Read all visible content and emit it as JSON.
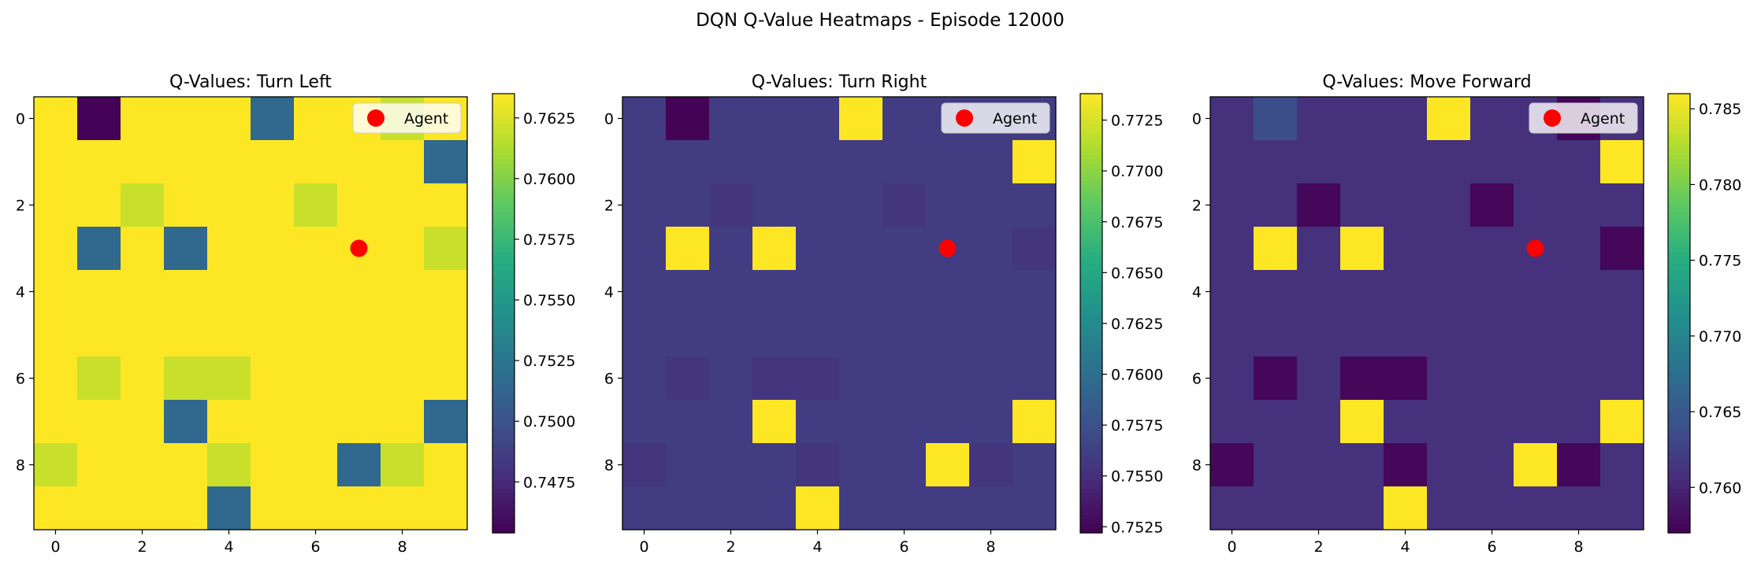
{
  "figure": {
    "title": "DQN Q-Value Heatmaps - Episode 12000"
  },
  "colormap": {
    "name": "viridis",
    "stops": [
      "#440154",
      "#472d7b",
      "#3b528b",
      "#2c728e",
      "#21918c",
      "#28ae80",
      "#5ec962",
      "#addc30",
      "#fde725"
    ]
  },
  "chart_data": [
    {
      "type": "heatmap",
      "title": "Q-Values: Turn Left",
      "x_ticks": [
        "0",
        "2",
        "4",
        "6",
        "8"
      ],
      "y_ticks": [
        "0",
        "2",
        "4",
        "6",
        "8"
      ],
      "grid": false,
      "legend": {
        "position": "top-right",
        "entries": [
          "Agent"
        ]
      },
      "agent": {
        "x": 7,
        "y": 3,
        "label": "Agent",
        "color": "#ff0000"
      },
      "vmin": 0.7454,
      "vmax": 0.7635,
      "colorbar_ticks": [
        "0.7475",
        "0.7500",
        "0.7525",
        "0.7550",
        "0.7575",
        "0.7600",
        "0.7625"
      ],
      "values": [
        [
          0.7635,
          0.7455,
          0.7635,
          0.7635,
          0.7635,
          0.7515,
          0.7635,
          0.7635,
          0.762,
          0.7635
        ],
        [
          0.7635,
          0.7635,
          0.7635,
          0.7635,
          0.7635,
          0.7635,
          0.7635,
          0.7635,
          0.7635,
          0.7515
        ],
        [
          0.7635,
          0.7635,
          0.762,
          0.7635,
          0.7635,
          0.7635,
          0.762,
          0.7635,
          0.7635,
          0.7635
        ],
        [
          0.7635,
          0.7515,
          0.7635,
          0.7515,
          0.7635,
          0.7635,
          0.7635,
          0.7635,
          0.7635,
          0.762
        ],
        [
          0.7635,
          0.7635,
          0.7635,
          0.7635,
          0.7635,
          0.7635,
          0.7635,
          0.7635,
          0.7635,
          0.7635
        ],
        [
          0.7635,
          0.7635,
          0.7635,
          0.7635,
          0.7635,
          0.7635,
          0.7635,
          0.7635,
          0.7635,
          0.7635
        ],
        [
          0.7635,
          0.762,
          0.7635,
          0.762,
          0.762,
          0.7635,
          0.7635,
          0.7635,
          0.7635,
          0.7635
        ],
        [
          0.7635,
          0.7635,
          0.7635,
          0.7515,
          0.7635,
          0.7635,
          0.7635,
          0.7635,
          0.7635,
          0.7515
        ],
        [
          0.762,
          0.7635,
          0.7635,
          0.7635,
          0.762,
          0.7635,
          0.7635,
          0.7515,
          0.762,
          0.7635
        ],
        [
          0.7635,
          0.7635,
          0.7635,
          0.7635,
          0.7515,
          0.7635,
          0.7635,
          0.7635,
          0.7635,
          0.7635
        ]
      ]
    },
    {
      "type": "heatmap",
      "title": "Q-Values: Turn Right",
      "x_ticks": [
        "0",
        "2",
        "4",
        "6",
        "8"
      ],
      "y_ticks": [
        "0",
        "2",
        "4",
        "6",
        "8"
      ],
      "grid": false,
      "legend": {
        "position": "top-right",
        "entries": [
          "Agent"
        ]
      },
      "agent": {
        "x": 7,
        "y": 3,
        "label": "Agent",
        "color": "#ff0000"
      },
      "vmin": 0.7522,
      "vmax": 0.7738,
      "colorbar_ticks": [
        "0.7525",
        "0.7550",
        "0.7575",
        "0.7600",
        "0.7625",
        "0.7650",
        "0.7675",
        "0.7700",
        "0.7725"
      ],
      "values": [
        [
          0.756,
          0.7523,
          0.756,
          0.756,
          0.756,
          0.7738,
          0.756,
          0.756,
          0.756,
          0.756
        ],
        [
          0.756,
          0.756,
          0.756,
          0.756,
          0.756,
          0.756,
          0.756,
          0.756,
          0.756,
          0.7738
        ],
        [
          0.756,
          0.756,
          0.7555,
          0.756,
          0.756,
          0.756,
          0.7555,
          0.756,
          0.756,
          0.756
        ],
        [
          0.756,
          0.7738,
          0.756,
          0.7738,
          0.756,
          0.756,
          0.756,
          0.756,
          0.756,
          0.7555
        ],
        [
          0.756,
          0.756,
          0.756,
          0.756,
          0.756,
          0.756,
          0.756,
          0.756,
          0.756,
          0.756
        ],
        [
          0.756,
          0.756,
          0.756,
          0.756,
          0.756,
          0.756,
          0.756,
          0.756,
          0.756,
          0.756
        ],
        [
          0.756,
          0.7555,
          0.756,
          0.7555,
          0.7555,
          0.756,
          0.756,
          0.756,
          0.756,
          0.756
        ],
        [
          0.756,
          0.756,
          0.756,
          0.7738,
          0.756,
          0.756,
          0.756,
          0.756,
          0.756,
          0.7738
        ],
        [
          0.7555,
          0.756,
          0.756,
          0.756,
          0.7555,
          0.756,
          0.756,
          0.7738,
          0.7555,
          0.756
        ],
        [
          0.756,
          0.756,
          0.756,
          0.756,
          0.7738,
          0.756,
          0.756,
          0.756,
          0.756,
          0.756
        ]
      ]
    },
    {
      "type": "heatmap",
      "title": "Q-Values: Move Forward",
      "x_ticks": [
        "0",
        "2",
        "4",
        "6",
        "8"
      ],
      "y_ticks": [
        "0",
        "2",
        "4",
        "6",
        "8"
      ],
      "grid": false,
      "legend": {
        "position": "top-right",
        "entries": [
          "Agent"
        ]
      },
      "agent": {
        "x": 7,
        "y": 3,
        "label": "Agent",
        "color": "#ff0000"
      },
      "vmin": 0.757,
      "vmax": 0.786,
      "colorbar_ticks": [
        "0.760",
        "0.765",
        "0.770",
        "0.775",
        "0.780",
        "0.785"
      ],
      "values": [
        [
          0.761,
          0.764,
          0.761,
          0.761,
          0.761,
          0.786,
          0.761,
          0.761,
          0.7575,
          0.761
        ],
        [
          0.761,
          0.761,
          0.761,
          0.761,
          0.761,
          0.761,
          0.761,
          0.761,
          0.761,
          0.786
        ],
        [
          0.761,
          0.761,
          0.7575,
          0.761,
          0.761,
          0.761,
          0.7575,
          0.761,
          0.761,
          0.761
        ],
        [
          0.761,
          0.786,
          0.761,
          0.786,
          0.761,
          0.761,
          0.761,
          0.761,
          0.761,
          0.7575
        ],
        [
          0.761,
          0.761,
          0.761,
          0.761,
          0.761,
          0.761,
          0.761,
          0.761,
          0.761,
          0.761
        ],
        [
          0.761,
          0.761,
          0.761,
          0.761,
          0.761,
          0.761,
          0.761,
          0.761,
          0.761,
          0.761
        ],
        [
          0.761,
          0.7575,
          0.761,
          0.7575,
          0.7575,
          0.761,
          0.761,
          0.761,
          0.761,
          0.761
        ],
        [
          0.761,
          0.761,
          0.761,
          0.786,
          0.761,
          0.761,
          0.761,
          0.761,
          0.761,
          0.786
        ],
        [
          0.7575,
          0.761,
          0.761,
          0.761,
          0.7575,
          0.761,
          0.761,
          0.786,
          0.7575,
          0.761
        ],
        [
          0.761,
          0.761,
          0.761,
          0.761,
          0.786,
          0.761,
          0.761,
          0.761,
          0.761,
          0.761
        ]
      ]
    }
  ]
}
